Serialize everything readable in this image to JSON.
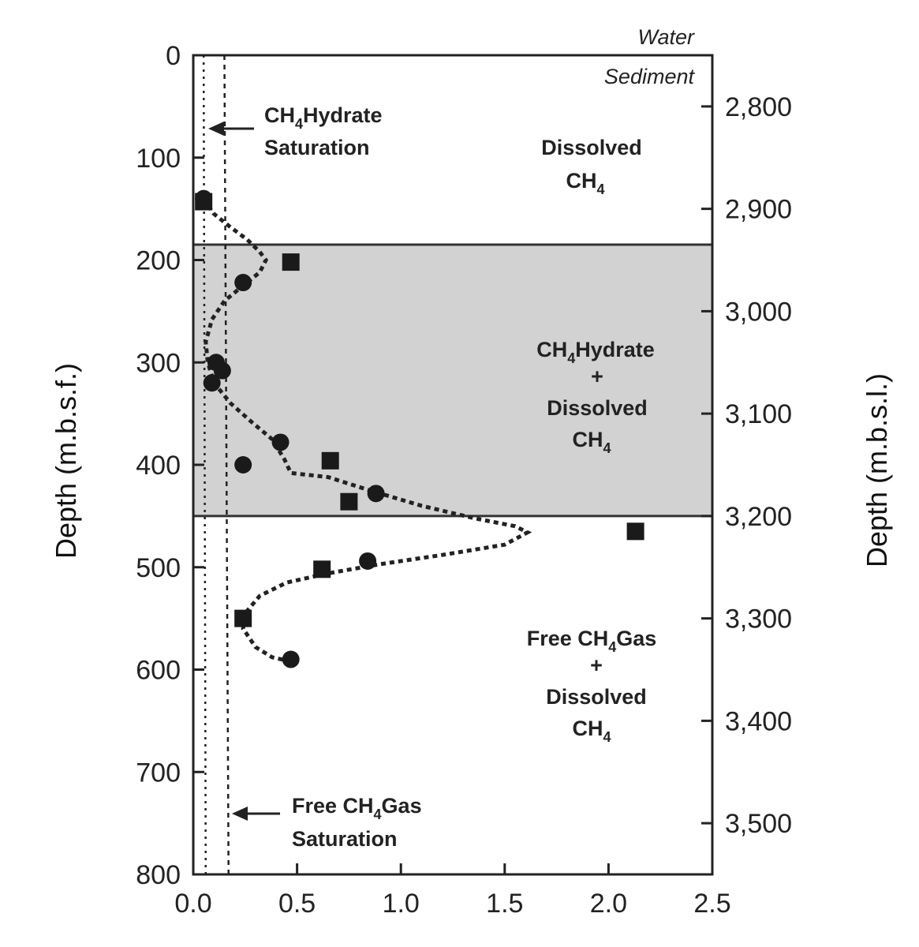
{
  "chart_data": {
    "type": "scatter",
    "xlim": [
      0,
      2.5
    ],
    "ylim": [
      0,
      800
    ],
    "y2lim": [
      2750,
      3550
    ],
    "xticks": [
      "0.0",
      "0.5",
      "1.0",
      "1.5",
      "2.0",
      "2.5"
    ],
    "xtick_values": [
      0,
      0.5,
      1.0,
      1.5,
      2.0,
      2.5
    ],
    "yticks": [
      "0",
      "100",
      "200",
      "300",
      "400",
      "500",
      "600",
      "700",
      "800"
    ],
    "ytick_values": [
      0,
      100,
      200,
      300,
      400,
      500,
      600,
      700,
      800
    ],
    "y2ticks": [
      "2,800",
      "2,900",
      "3,000",
      "3,100",
      "3,200",
      "3,300",
      "3,400",
      "3,500"
    ],
    "y2tick_values": [
      2800,
      2900,
      3000,
      3100,
      3200,
      3300,
      3400,
      3500
    ],
    "xlabel": "",
    "ylabel": "Depth (m.b.s.f.)",
    "y2label": "Depth (m.b.s.l.)",
    "grid": false,
    "shaded_zone": {
      "y_top": 185,
      "y_bottom": 450,
      "color": "#d2d2d2"
    },
    "series": [
      {
        "marker": "circle",
        "points": [
          {
            "x": 0.05,
            "y": 140
          },
          {
            "x": 0.24,
            "y": 222
          },
          {
            "x": 0.14,
            "y": 308
          },
          {
            "x": 0.11,
            "y": 300
          },
          {
            "x": 0.09,
            "y": 320
          },
          {
            "x": 0.42,
            "y": 378
          },
          {
            "x": 0.24,
            "y": 400
          },
          {
            "x": 0.88,
            "y": 428
          },
          {
            "x": 0.84,
            "y": 494
          },
          {
            "x": 0.47,
            "y": 590
          }
        ]
      },
      {
        "marker": "square",
        "points": [
          {
            "x": 0.05,
            "y": 143
          },
          {
            "x": 0.47,
            "y": 202
          },
          {
            "x": 0.66,
            "y": 396
          },
          {
            "x": 0.75,
            "y": 436
          },
          {
            "x": 2.13,
            "y": 465
          },
          {
            "x": 0.62,
            "y": 502
          },
          {
            "x": 0.24,
            "y": 550
          }
        ]
      },
      {
        "line": "dotted-curve",
        "points": [
          {
            "x": 0.05,
            "y": 140
          },
          {
            "x": 0.1,
            "y": 155
          },
          {
            "x": 0.18,
            "y": 168
          },
          {
            "x": 0.26,
            "y": 180
          },
          {
            "x": 0.32,
            "y": 192
          },
          {
            "x": 0.35,
            "y": 200
          },
          {
            "x": 0.32,
            "y": 212
          },
          {
            "x": 0.24,
            "y": 225
          },
          {
            "x": 0.15,
            "y": 240
          },
          {
            "x": 0.09,
            "y": 258
          },
          {
            "x": 0.06,
            "y": 280
          },
          {
            "x": 0.07,
            "y": 300
          },
          {
            "x": 0.1,
            "y": 320
          },
          {
            "x": 0.18,
            "y": 340
          },
          {
            "x": 0.28,
            "y": 358
          },
          {
            "x": 0.38,
            "y": 375
          },
          {
            "x": 0.44,
            "y": 395
          },
          {
            "x": 0.47,
            "y": 408
          },
          {
            "x": 0.65,
            "y": 412
          },
          {
            "x": 0.85,
            "y": 425
          },
          {
            "x": 1.1,
            "y": 440
          },
          {
            "x": 1.35,
            "y": 452
          },
          {
            "x": 1.55,
            "y": 460
          },
          {
            "x": 1.61,
            "y": 466
          },
          {
            "x": 1.5,
            "y": 478
          },
          {
            "x": 1.2,
            "y": 488
          },
          {
            "x": 0.9,
            "y": 497
          },
          {
            "x": 0.65,
            "y": 506
          },
          {
            "x": 0.45,
            "y": 515
          },
          {
            "x": 0.32,
            "y": 528
          },
          {
            "x": 0.25,
            "y": 545
          },
          {
            "x": 0.24,
            "y": 560
          },
          {
            "x": 0.3,
            "y": 578
          },
          {
            "x": 0.38,
            "y": 588
          },
          {
            "x": 0.47,
            "y": 592
          }
        ]
      }
    ],
    "reference_lines": [
      {
        "label": "CH4 Hydrate Saturation",
        "x_start": 0.05,
        "x_end": 0.06,
        "style": "dotted"
      },
      {
        "label": "Free CH4 Gas Saturation",
        "x_start": 0.15,
        "x_end": 0.17,
        "style": "dashed"
      }
    ],
    "annotations": {
      "water": "Water",
      "sediment": "Sediment",
      "hydrate_sat_1": "CH",
      "hydrate_sat_sub": "4",
      "hydrate_sat_2": "Hydrate",
      "hydrate_sat_3": "Saturation",
      "dissolved_1": "Dissolved",
      "dissolved_2": "CH",
      "dissolved_2_sub": "4",
      "zone2_1": "CH",
      "zone2_1_sub": "4",
      "zone2_1b": "Hydrate",
      "zone2_2": "+",
      "zone2_3": "Dissolved",
      "zone2_4": "CH",
      "zone2_4_sub": "4",
      "zone3_1": "Free CH",
      "zone3_1_sub": "4",
      "zone3_1b": "Gas",
      "zone3_2": "+",
      "zone3_3": "Dissolved",
      "zone3_4": "CH",
      "zone3_4_sub": "4",
      "gas_sat_1": "Free CH",
      "gas_sat_sub": "4",
      "gas_sat_2": "Gas",
      "gas_sat_3": "Saturation"
    }
  }
}
